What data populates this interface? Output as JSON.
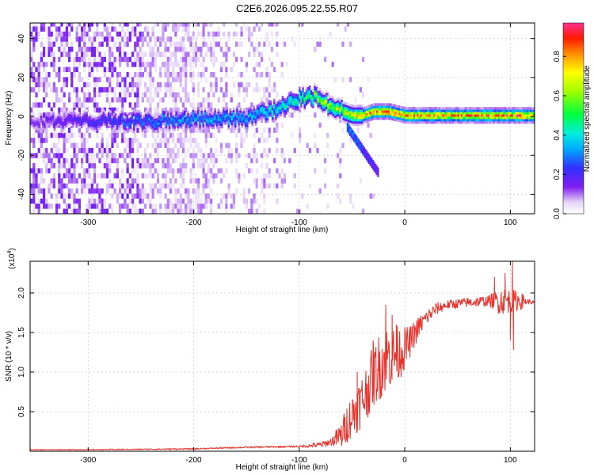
{
  "title": "C2E6.2026.095.22.55.R07",
  "chart_data": [
    {
      "type": "heatmap",
      "name": "spectrogram",
      "xlabel": "Height of straight line (km)",
      "ylabel": "Frequency (Hz)",
      "xlim": [
        -355,
        123
      ],
      "ylim": [
        -50,
        48
      ],
      "xticks": [
        -300,
        -200,
        -100,
        0,
        100
      ],
      "yticks": [
        -40,
        -20,
        0,
        20,
        40
      ],
      "grid": true,
      "colorbar": {
        "label": "Normalized spectral amplitude",
        "range": [
          0,
          0.97
        ],
        "ticks": [
          0.0,
          0.2,
          0.4,
          0.6,
          0.8
        ]
      },
      "ridge": [
        {
          "x": -350,
          "f": -3,
          "amp": 0.15
        },
        {
          "x": -300,
          "f": -3,
          "amp": 0.22
        },
        {
          "x": -250,
          "f": -3,
          "amp": 0.3
        },
        {
          "x": -200,
          "f": -2,
          "amp": 0.35
        },
        {
          "x": -150,
          "f": -1,
          "amp": 0.38
        },
        {
          "x": -120,
          "f": 4,
          "amp": 0.45
        },
        {
          "x": -100,
          "f": 9,
          "amp": 0.5
        },
        {
          "x": -90,
          "f": 10,
          "amp": 0.55
        },
        {
          "x": -80,
          "f": 8,
          "amp": 0.65
        },
        {
          "x": -65,
          "f": 3,
          "amp": 0.7
        },
        {
          "x": -50,
          "f": 0,
          "amp": 0.72
        },
        {
          "x": -40,
          "f": 0,
          "amp": 0.8
        },
        {
          "x": -30,
          "f": 2,
          "amp": 0.9
        },
        {
          "x": -15,
          "f": 2,
          "amp": 0.92
        },
        {
          "x": 0,
          "f": 0,
          "amp": 0.85
        },
        {
          "x": 50,
          "f": 0,
          "amp": 0.85
        },
        {
          "x": 100,
          "f": 0,
          "amp": 0.88
        },
        {
          "x": 123,
          "f": 0,
          "amp": 0.85
        }
      ],
      "branch": [
        {
          "x": -55,
          "f": -6,
          "amp": 0.3
        },
        {
          "x": -45,
          "f": -14,
          "amp": 0.28
        },
        {
          "x": -35,
          "f": -22,
          "amp": 0.22
        },
        {
          "x": -25,
          "f": -30,
          "amp": 0.18
        }
      ]
    },
    {
      "type": "line",
      "name": "snr",
      "xlabel": "Height of straight line (km)",
      "ylabel": "SNR (10 * v/v)",
      "y_multiplier": "(x10^4)",
      "xlim": [
        -355,
        123
      ],
      "ylim": [
        0,
        2.4
      ],
      "xticks": [
        -300,
        -200,
        -100,
        0,
        100
      ],
      "yticks": [
        0.5,
        1.0,
        1.5,
        2.0
      ],
      "grid": true,
      "series": [
        {
          "name": "SNR",
          "color": "#e8302a",
          "points": [
            [
              -355,
              0.02
            ],
            [
              -300,
              0.02
            ],
            [
              -200,
              0.03
            ],
            [
              -150,
              0.05
            ],
            [
              -100,
              0.06
            ],
            [
              -80,
              0.08
            ],
            [
              -70,
              0.12
            ],
            [
              -60,
              0.2
            ],
            [
              -55,
              0.35
            ],
            [
              -50,
              0.45
            ],
            [
              -45,
              0.55
            ],
            [
              -40,
              0.65
            ],
            [
              -35,
              0.8
            ],
            [
              -30,
              0.95
            ],
            [
              -25,
              1.05
            ],
            [
              -20,
              1.15
            ],
            [
              -15,
              1.2
            ],
            [
              -10,
              1.2
            ],
            [
              -5,
              1.25
            ],
            [
              0,
              1.3
            ],
            [
              5,
              1.38
            ],
            [
              10,
              1.5
            ],
            [
              15,
              1.6
            ],
            [
              20,
              1.68
            ],
            [
              30,
              1.8
            ],
            [
              40,
              1.85
            ],
            [
              60,
              1.88
            ],
            [
              80,
              1.9
            ],
            [
              100,
              1.9
            ],
            [
              110,
              1.9
            ],
            [
              123,
              1.88
            ]
          ],
          "noise": [
            [
              -355,
              0.004
            ],
            [
              -100,
              0.01
            ],
            [
              -70,
              0.05
            ],
            [
              -55,
              0.25
            ],
            [
              -40,
              0.35
            ],
            [
              -20,
              0.45
            ],
            [
              -5,
              0.35
            ],
            [
              5,
              0.2
            ],
            [
              20,
              0.1
            ],
            [
              40,
              0.06
            ],
            [
              80,
              0.07
            ],
            [
              90,
              0.18
            ],
            [
              110,
              0.12
            ],
            [
              115,
              0.04
            ],
            [
              123,
              0.02
            ]
          ],
          "spikes": [
            [
              -18,
              1.85
            ],
            [
              -12,
              1.72
            ],
            [
              -8,
              1.6
            ],
            [
              -30,
              1.4
            ],
            [
              -45,
              1.0
            ],
            [
              85,
              2.2
            ],
            [
              95,
              2.25
            ],
            [
              102,
              2.4
            ],
            [
              100,
              1.4
            ],
            [
              103,
              1.28
            ]
          ]
        }
      ]
    }
  ]
}
